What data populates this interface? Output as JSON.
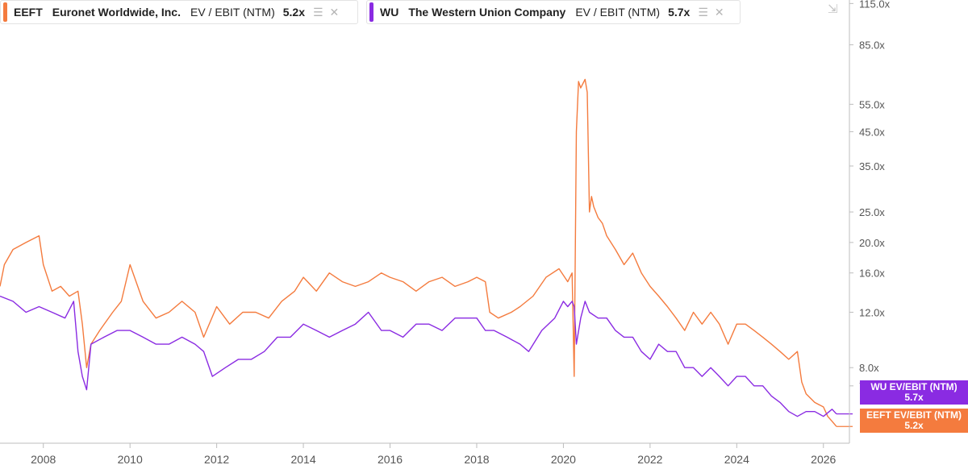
{
  "legend": [
    {
      "ticker": "EEFT",
      "company": "Euronet Worldwide, Inc.",
      "metric": "EV / EBIT (NTM)",
      "value": "5.2x",
      "color": "#f47b3e"
    },
    {
      "ticker": "WU",
      "company": "The Western Union Company",
      "metric": "EV / EBIT (NTM)",
      "value": "5.7x",
      "color": "#8a2be2"
    }
  ],
  "badges": [
    {
      "label": "WU EV/EBIT (NTM)",
      "value": "5.7x",
      "color": "#8a2be2"
    },
    {
      "label": "EEFT EV/EBIT (NTM)",
      "value": "5.2x",
      "color": "#f47b3e"
    }
  ],
  "icons": {
    "collapse": "collapse-icon",
    "layers": "layers-icon",
    "close": "close-icon"
  },
  "chart_data": {
    "type": "line",
    "title": "",
    "xlabel": "",
    "ylabel": "",
    "y_scale": "log",
    "xlim": [
      2007.0,
      2026.6
    ],
    "ylim": [
      4.6,
      118
    ],
    "x_ticks": [
      2008,
      2010,
      2012,
      2014,
      2016,
      2018,
      2020,
      2022,
      2024,
      2026
    ],
    "x_tick_labels": [
      "2008",
      "2010",
      "2012",
      "2014",
      "2016",
      "2018",
      "2020",
      "2022",
      "2024",
      "2026"
    ],
    "y_ticks": [
      7,
      8,
      12,
      16,
      20,
      25,
      35,
      45,
      55,
      85,
      115
    ],
    "y_tick_labels": [
      "7.0x",
      "8.0x",
      "12.0x",
      "16.0x",
      "20.0x",
      "25.0x",
      "35.0x",
      "45.0x",
      "55.0x",
      "85.0x",
      "115.0x"
    ],
    "series": [
      {
        "name": "EEFT",
        "color": "#f47b3e",
        "x": [
          2007.0,
          2007.1,
          2007.3,
          2007.6,
          2007.9,
          2008.0,
          2008.2,
          2008.4,
          2008.6,
          2008.8,
          2008.9,
          2009.0,
          2009.1,
          2009.3,
          2009.6,
          2009.8,
          2010.0,
          2010.3,
          2010.6,
          2010.9,
          2011.2,
          2011.5,
          2011.7,
          2012.0,
          2012.3,
          2012.6,
          2012.9,
          2013.2,
          2013.5,
          2013.8,
          2014.0,
          2014.3,
          2014.6,
          2014.9,
          2015.2,
          2015.5,
          2015.8,
          2016.0,
          2016.3,
          2016.6,
          2016.9,
          2017.2,
          2017.5,
          2017.8,
          2018.0,
          2018.2,
          2018.3,
          2018.5,
          2018.8,
          2019.0,
          2019.3,
          2019.6,
          2019.9,
          2020.1,
          2020.2,
          2020.25,
          2020.3,
          2020.35,
          2020.4,
          2020.5,
          2020.55,
          2020.6,
          2020.65,
          2020.7,
          2020.8,
          2020.9,
          2021.0,
          2021.2,
          2021.4,
          2021.6,
          2021.8,
          2022.0,
          2022.2,
          2022.4,
          2022.6,
          2022.8,
          2023.0,
          2023.2,
          2023.4,
          2023.6,
          2023.8,
          2024.0,
          2024.2,
          2024.4,
          2024.6,
          2024.8,
          2025.0,
          2025.2,
          2025.4,
          2025.5,
          2025.6,
          2025.8,
          2026.0,
          2026.1,
          2026.2,
          2026.3
        ],
        "y": [
          14.5,
          17,
          19,
          20,
          21,
          17,
          14,
          14.5,
          13.5,
          14,
          11,
          8,
          9.5,
          10.5,
          12,
          13,
          17,
          13,
          11.5,
          12,
          13,
          12,
          10,
          12.5,
          11,
          12,
          12,
          11.5,
          13,
          14,
          15.5,
          14,
          16,
          15,
          14.5,
          15,
          16,
          15.5,
          15,
          14,
          15,
          15.5,
          14.5,
          15,
          15.5,
          15,
          12,
          11.5,
          12,
          12.5,
          13.5,
          15.5,
          16.5,
          15,
          16,
          7.5,
          45,
          65,
          62,
          66,
          60,
          25,
          28,
          26,
          24,
          23,
          21,
          19,
          17,
          18.5,
          16,
          14.5,
          13.5,
          12.5,
          11.5,
          10.5,
          12,
          11,
          12,
          11,
          9.5,
          11,
          11,
          10.5,
          10,
          9.5,
          9,
          8.5,
          9,
          7.2,
          6.6,
          6.2,
          6.0,
          5.6,
          5.4,
          5.2
        ]
      },
      {
        "name": "WU",
        "color": "#8a2be2",
        "x": [
          2007.0,
          2007.3,
          2007.6,
          2007.9,
          2008.2,
          2008.5,
          2008.7,
          2008.8,
          2008.9,
          2009.0,
          2009.1,
          2009.4,
          2009.7,
          2010.0,
          2010.3,
          2010.6,
          2010.9,
          2011.2,
          2011.5,
          2011.7,
          2011.9,
          2012.2,
          2012.5,
          2012.8,
          2013.1,
          2013.4,
          2013.7,
          2014.0,
          2014.3,
          2014.6,
          2014.9,
          2015.2,
          2015.5,
          2015.8,
          2016.0,
          2016.3,
          2016.6,
          2016.9,
          2017.2,
          2017.5,
          2017.8,
          2018.0,
          2018.2,
          2018.4,
          2018.7,
          2019.0,
          2019.2,
          2019.5,
          2019.8,
          2020.0,
          2020.1,
          2020.2,
          2020.25,
          2020.3,
          2020.4,
          2020.5,
          2020.6,
          2020.8,
          2021.0,
          2021.2,
          2021.4,
          2021.6,
          2021.8,
          2022.0,
          2022.2,
          2022.4,
          2022.6,
          2022.8,
          2023.0,
          2023.2,
          2023.4,
          2023.6,
          2023.8,
          2024.0,
          2024.2,
          2024.4,
          2024.6,
          2024.8,
          2025.0,
          2025.2,
          2025.4,
          2025.6,
          2025.8,
          2026.0,
          2026.2,
          2026.3
        ],
        "y": [
          13.5,
          13,
          12,
          12.5,
          12,
          11.5,
          13,
          9,
          7.5,
          6.8,
          9.5,
          10,
          10.5,
          10.5,
          10,
          9.5,
          9.5,
          10,
          9.5,
          9,
          7.5,
          8,
          8.5,
          8.5,
          9,
          10,
          10,
          11,
          10.5,
          10,
          10.5,
          11,
          12,
          10.5,
          10.5,
          10,
          11,
          11,
          10.5,
          11.5,
          11.5,
          11.5,
          10.5,
          10.5,
          10,
          9.5,
          9,
          10.5,
          11.5,
          13,
          12.5,
          13,
          12.5,
          9.5,
          11.5,
          13,
          12,
          11.5,
          11.5,
          10.5,
          10,
          10,
          9,
          8.5,
          9.5,
          9,
          9,
          8,
          8,
          7.5,
          8,
          7.5,
          7,
          7.5,
          7.5,
          7,
          7,
          6.5,
          6.2,
          5.8,
          5.6,
          5.8,
          5.8,
          5.6,
          5.9,
          5.7
        ]
      }
    ]
  }
}
